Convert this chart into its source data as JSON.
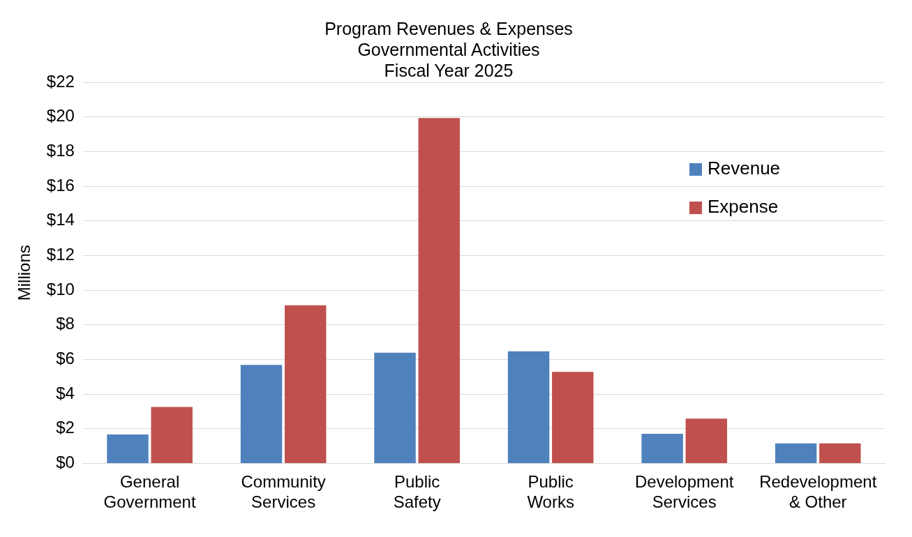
{
  "chart_data": {
    "type": "bar",
    "title": "Program Revenues & Expenses\nGovernmental Activities\nFiscal Year 2025",
    "ylabel": "Millions",
    "categories": [
      "General Government",
      "Community Services",
      "Public Safety",
      "Public Works",
      "Development Services",
      "Redevelopment & Other"
    ],
    "series": [
      {
        "name": "Revenue",
        "color": "#4f81bd",
        "values": [
          1.67,
          5.68,
          6.39,
          6.47,
          1.71,
          1.15
        ]
      },
      {
        "name": "Expense",
        "color": "#c0504d",
        "values": [
          3.26,
          9.13,
          19.94,
          5.28,
          2.58,
          1.15
        ]
      }
    ],
    "ylim": [
      0,
      22
    ],
    "yticks": [
      {
        "value": 0,
        "label": "$0"
      },
      {
        "value": 2,
        "label": "$2"
      },
      {
        "value": 4,
        "label": "$4"
      },
      {
        "value": 6,
        "label": "$6"
      },
      {
        "value": 8,
        "label": "$8"
      },
      {
        "value": 10,
        "label": "$10"
      },
      {
        "value": 12,
        "label": "$12"
      },
      {
        "value": 14,
        "label": "$14"
      },
      {
        "value": 16,
        "label": "$16"
      },
      {
        "value": 18,
        "label": "$18"
      },
      {
        "value": 20,
        "label": "$20"
      },
      {
        "value": 22,
        "label": "$22"
      }
    ],
    "grid": "y",
    "legend": "right"
  }
}
